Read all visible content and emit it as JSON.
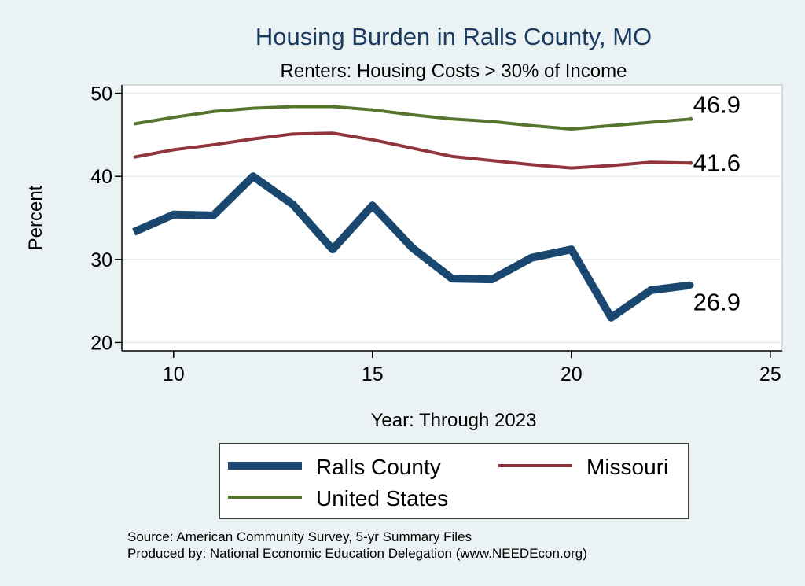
{
  "chart_data": {
    "type": "line",
    "title": "Housing Burden in Ralls County, MO",
    "subtitle": "Renters: Housing Costs > 30% of Income",
    "xlabel": "Year: Through 2023",
    "ylabel": "Percent",
    "xlim": [
      8.7,
      25.3
    ],
    "ylim": [
      19,
      51
    ],
    "xticks": [
      10,
      15,
      20,
      25
    ],
    "yticks": [
      20,
      30,
      40,
      50
    ],
    "grid": true,
    "legend_position": "bottom",
    "x": [
      9,
      10,
      11,
      12,
      13,
      14,
      15,
      16,
      17,
      18,
      19,
      20,
      21,
      22,
      23
    ],
    "series": [
      {
        "name": "Ralls County",
        "color": "#1a476f",
        "values": [
          33.3,
          35.4,
          35.3,
          40.0,
          36.6,
          31.2,
          36.5,
          31.4,
          27.7,
          27.6,
          30.2,
          31.2,
          23.0,
          26.3,
          26.9
        ],
        "end_label": "26.9"
      },
      {
        "name": "Missouri",
        "color": "#90353b",
        "values": [
          42.3,
          43.2,
          43.8,
          44.5,
          45.1,
          45.2,
          44.4,
          43.4,
          42.4,
          41.9,
          41.4,
          41.0,
          41.3,
          41.7,
          41.6
        ],
        "end_label": "41.6"
      },
      {
        "name": "United States",
        "color": "#55752f",
        "values": [
          46.3,
          47.1,
          47.8,
          48.2,
          48.4,
          48.4,
          48.0,
          47.4,
          46.9,
          46.6,
          46.1,
          45.7,
          46.1,
          46.5,
          46.9
        ],
        "end_label": "46.9"
      }
    ]
  },
  "notes": {
    "source": "Source: American Community Survey, 5-yr Summary Files",
    "produced": "Produced by: National Economic Education Delegation (www.NEEDEcon.org)"
  }
}
